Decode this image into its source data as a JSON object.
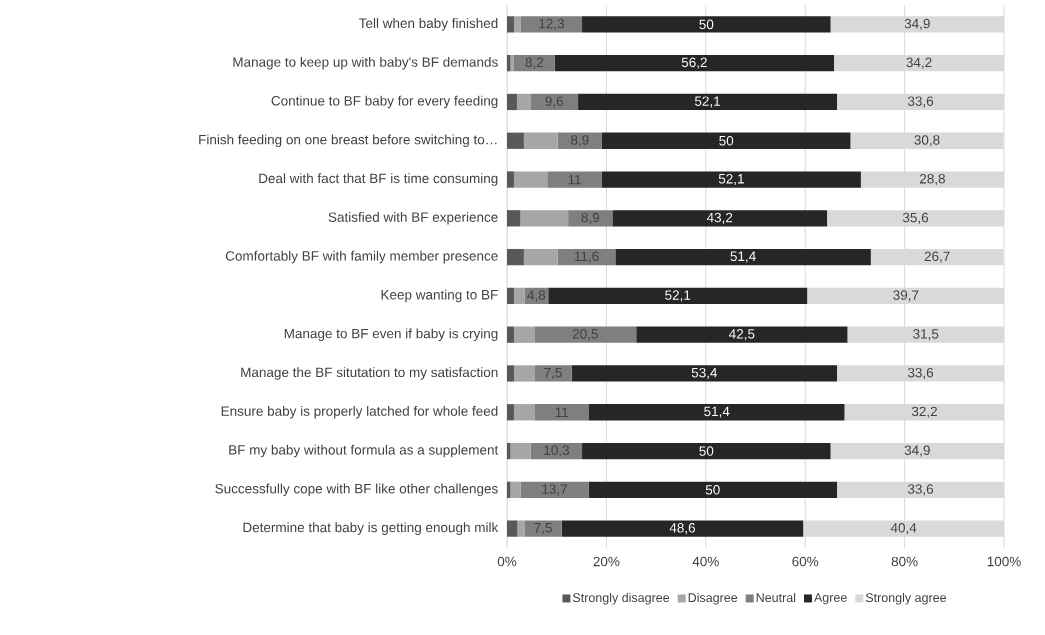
{
  "chart_data": {
    "type": "bar",
    "orientation": "horizontal",
    "stacked": true,
    "grid": "x",
    "legend": "bottom",
    "categories": [
      "Tell when baby finished",
      "Manage to keep up with baby's BF demands",
      "Continue to BF baby for every feeding",
      "Finish feeding on one breast before switching to…",
      "Deal with fact that BF is time consuming",
      "Satisfied with BF experience",
      "Comfortably BF with family member presence",
      "Keep wanting to BF",
      "Manage to BF even if baby is crying",
      "Manage the BF situtation to my satisfaction",
      "Ensure baby is properly latched for whole feed",
      "BF my baby without formula as a supplement",
      "Successfully cope with BF like other challenges",
      "Determine that baby is getting enough milk"
    ],
    "xlim": [
      0,
      100
    ],
    "xticks": [
      {
        "value": 0,
        "label": "0%"
      },
      {
        "value": 20,
        "label": "20%"
      },
      {
        "value": 40,
        "label": "40%"
      },
      {
        "value": 60,
        "label": "60%"
      },
      {
        "value": 80,
        "label": "80%"
      },
      {
        "value": 100,
        "label": "100%"
      }
    ],
    "series": [
      {
        "name": "Strongly disagree",
        "color": "#595959",
        "values": [
          1.4,
          0.7,
          2.0,
          3.4,
          1.4,
          2.7,
          3.4,
          1.4,
          1.4,
          1.4,
          1.4,
          0.7,
          0.7,
          2.1
        ]
      },
      {
        "name": "Disagree",
        "color": "#a6a6a6",
        "values": [
          1.4,
          0.7,
          2.7,
          6.8,
          6.7,
          9.6,
          6.8,
          2.1,
          4.1,
          4.1,
          4.1,
          4.1,
          2.0,
          1.4
        ]
      },
      {
        "name": "Neutral",
        "color": "#7f7f7f",
        "values": [
          12.3,
          8.2,
          9.6,
          8.9,
          11,
          8.9,
          11.6,
          4.8,
          20.5,
          7.5,
          11,
          10.3,
          13.7,
          7.5
        ],
        "value_labels": [
          "12,3",
          "8,2",
          "9,6",
          "8,9",
          "11",
          "8,9",
          "11,6",
          "4,8",
          "20,5",
          "7,5",
          "11",
          "10,3",
          "13,7",
          "7,5"
        ]
      },
      {
        "name": "Agree",
        "color": "#262626",
        "values": [
          50,
          56.2,
          52.1,
          50,
          52.1,
          43.2,
          51.4,
          52.1,
          42.5,
          53.4,
          51.4,
          50,
          50,
          48.6
        ],
        "value_labels": [
          "50",
          "56,2",
          "52,1",
          "50",
          "52,1",
          "43,2",
          "51,4",
          "52,1",
          "42,5",
          "53,4",
          "51,4",
          "50",
          "50",
          "48,6"
        ]
      },
      {
        "name": "Strongly agree",
        "color": "#d9d9d9",
        "values": [
          34.9,
          34.2,
          33.6,
          30.8,
          28.8,
          35.6,
          26.7,
          39.7,
          31.5,
          33.6,
          32.2,
          34.9,
          33.6,
          40.4
        ],
        "value_labels": [
          "34,9",
          "34,2",
          "33,6",
          "30,8",
          "28,8",
          "35,6",
          "26,7",
          "39,7",
          "31,5",
          "33,6",
          "32,2",
          "34,9",
          "33,6",
          "40,4"
        ]
      }
    ]
  }
}
